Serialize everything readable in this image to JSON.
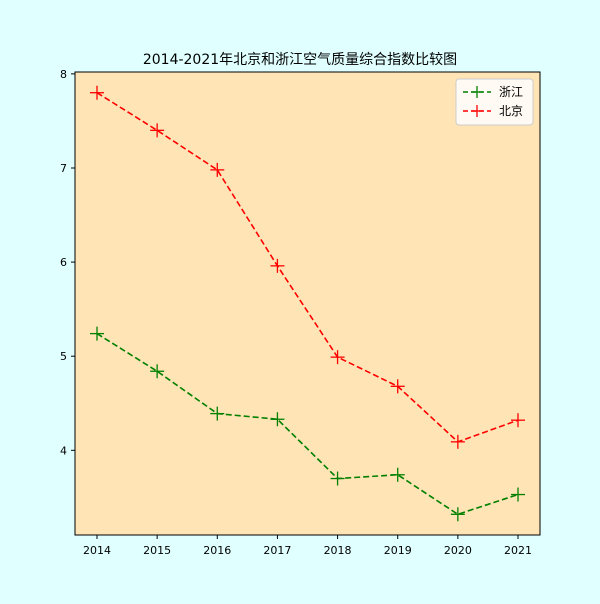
{
  "chart_data": {
    "type": "line",
    "title": "2014-2021年北京和浙江空气质量综合指数比较图",
    "xlabel": "",
    "ylabel": "",
    "x": [
      "2014",
      "2015",
      "2016",
      "2017",
      "2018",
      "2019",
      "2020",
      "2021"
    ],
    "ylim": [
      3.1,
      8.02
    ],
    "yticks": [
      4,
      5,
      6,
      7,
      8
    ],
    "grid": false,
    "legend_position": "top-right",
    "plot_background": "#ffe4b5",
    "figure_background": "#e0ffff",
    "marker": "plus",
    "line_style": "dashed",
    "series": [
      {
        "name": "浙江",
        "color": "#008000",
        "values": [
          5.24,
          4.84,
          4.39,
          4.33,
          3.7,
          3.74,
          3.32,
          3.53
        ]
      },
      {
        "name": "北京",
        "color": "#ff0000",
        "values": [
          7.8,
          7.4,
          6.98,
          5.96,
          4.99,
          4.68,
          4.09,
          4.32
        ]
      }
    ]
  }
}
